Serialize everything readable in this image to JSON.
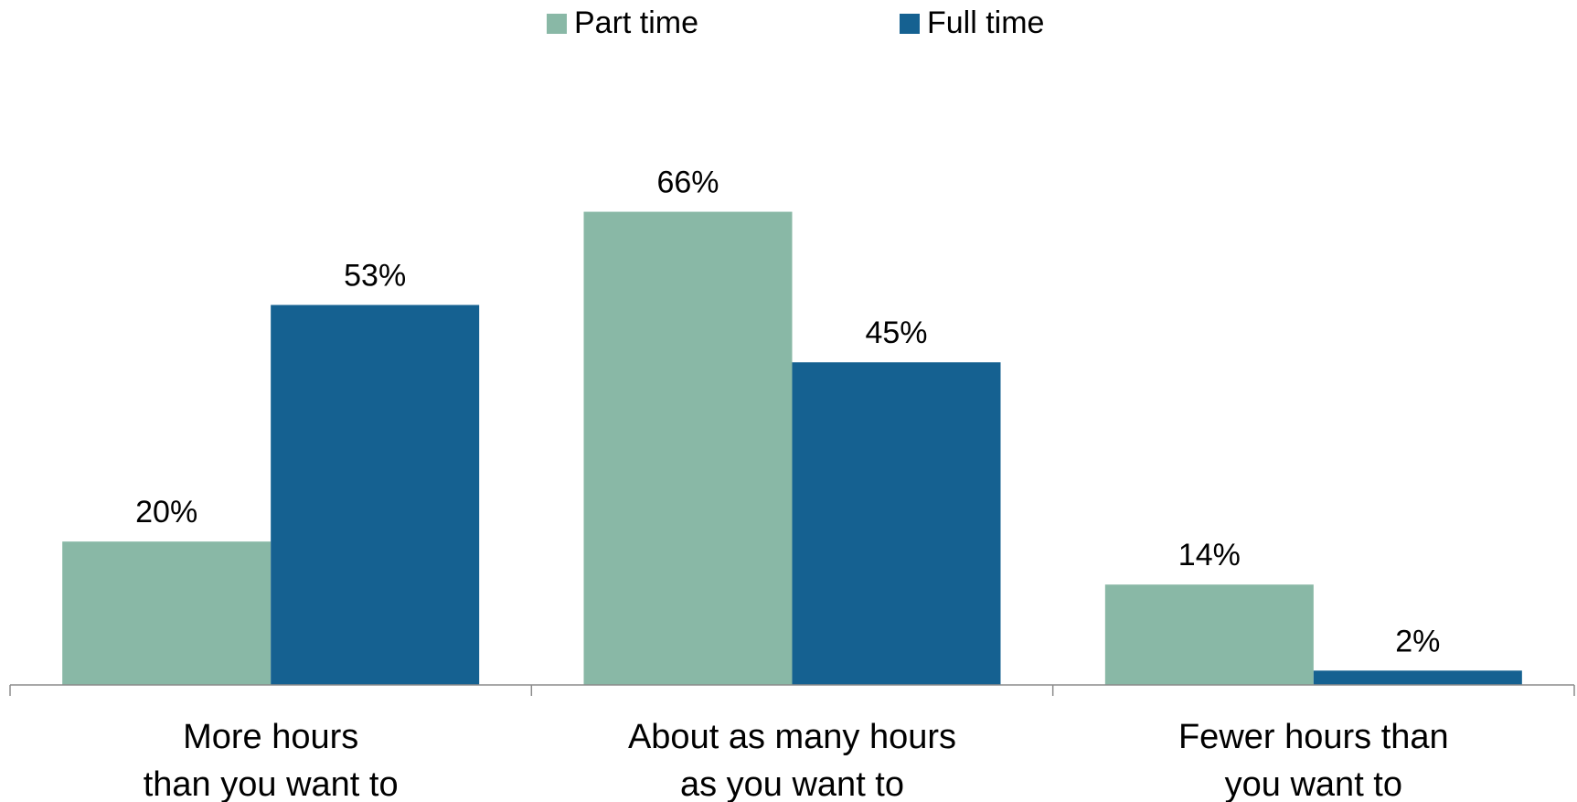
{
  "chart_data": {
    "type": "bar",
    "categories": [
      [
        "More hours",
        "than you want to"
      ],
      [
        "About as many hours",
        "as you want to"
      ],
      [
        "Fewer hours than",
        "you want to"
      ]
    ],
    "series": [
      {
        "name": "Part time",
        "values": [
          20,
          66,
          14
        ],
        "labels": [
          "20%",
          "66%",
          "14%"
        ],
        "color": "#89b8a6"
      },
      {
        "name": "Full time",
        "values": [
          53,
          45,
          2
        ],
        "labels": [
          "53%",
          "45%",
          "2%"
        ],
        "color": "#156191"
      }
    ],
    "legend_position": "top-center",
    "ylim": [
      0,
      75
    ],
    "grid": false,
    "y_axis_visible": false
  }
}
